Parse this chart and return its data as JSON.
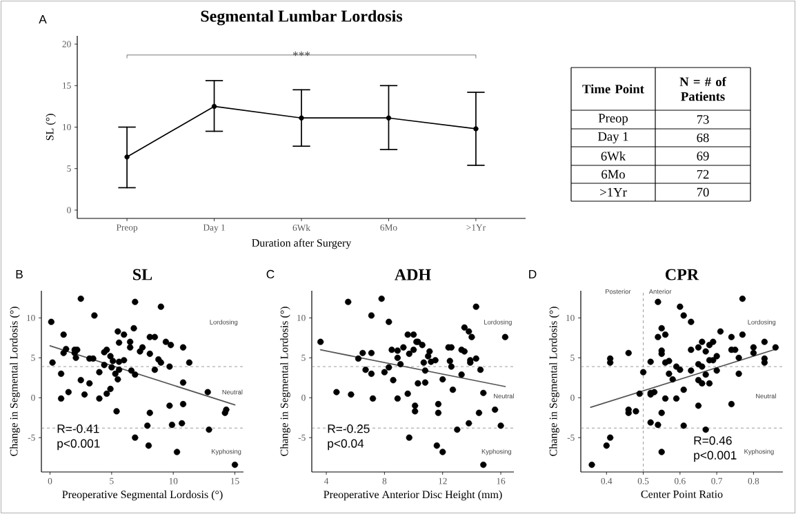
{
  "chart_data": [
    {
      "type": "line",
      "title": "Segmental Lumbar Lordosis",
      "xlabel": "Duration after Surgery",
      "ylabel": "SL (°)",
      "categories": [
        "Preop",
        "Day 1",
        "6Wk",
        "6Mo",
        ">1Yr"
      ],
      "ylim": [
        -1,
        21
      ],
      "yticks": [
        0,
        5,
        10,
        15,
        20
      ],
      "marker": "circle",
      "annotations": [
        "A",
        "***"
      ],
      "series": [
        {
          "color": "#000000",
          "values": [
            6.4,
            12.5,
            11.1,
            11.1,
            9.8
          ],
          "errors": [
            [
              2.7,
              10.0
            ],
            [
              9.5,
              15.6
            ],
            [
              7.7,
              14.5
            ],
            [
              7.3,
              15.0
            ],
            [
              5.4,
              14.2
            ]
          ]
        }
      ]
    },
    {
      "type": "other",
      "categories": [
        "Preop",
        "Day 1",
        "6Wk",
        "6Mo",
        ">1Yr"
      ],
      "values": [
        73,
        68,
        69,
        72,
        70
      ],
      "data_labels": true,
      "annotations": [
        "Time Point",
        "N = # of Patients"
      ]
    },
    {
      "type": "scatter",
      "title": "SL",
      "xlabel": "Preoperative Segmental Lordosis (°)",
      "ylabel": "Change in Segmental Lordosis (°)",
      "xlim": [
        -0.7,
        15.7
      ],
      "xticks": [
        0,
        5,
        10,
        15
      ],
      "ylim": [
        -9.3,
        13.4
      ],
      "yticks": [
        -5,
        0,
        5,
        10
      ],
      "marker": "circle",
      "series": [
        {
          "color": "#000000",
          "x": [
            2.5,
            6.9,
            9.0,
            3.6,
            0.1,
            1.1,
            6.8,
            5.5,
            6.0,
            8.1,
            8.5,
            6.5,
            5.6,
            9.4,
            9.8,
            10.8,
            6.5,
            1.3,
            2.0,
            2.2,
            7.5,
            7.3,
            4.6,
            4.4,
            1.1,
            2.0,
            8.1,
            2.1,
            4.9,
            3.2,
            3.5,
            5.1,
            6.0,
            5.6,
            8.8,
            9.0,
            11.3,
            0.2,
            4.4,
            5.0,
            9.7,
            5.6,
            6.6,
            8.5,
            0.9,
            4.0,
            5.3,
            6.9,
            5.5,
            2.5,
            3.2,
            10.8,
            4.9,
            4.6,
            2.8,
            1.5,
            0.9,
            4.0,
            12.8,
            9.7,
            10.8,
            5.4,
            8.1,
            14.2,
            14.3,
            7.9,
            9.9,
            10.7,
            12.9,
            6.9,
            8.0,
            10.3,
            15.0
          ],
          "values": [
            12.4,
            12.0,
            11.4,
            10.3,
            9.5,
            7.9,
            8.7,
            8.3,
            7.9,
            7.6,
            7.6,
            7.0,
            6.9,
            7.0,
            6.6,
            6.3,
            6.3,
            6.1,
            6.0,
            6.0,
            6.3,
            5.8,
            6.0,
            5.7,
            5.6,
            5.6,
            5.5,
            5.0,
            5.2,
            4.9,
            4.9,
            4.6,
            4.7,
            4.5,
            4.8,
            4.4,
            4.4,
            4.4,
            4.1,
            3.8,
            3.9,
            3.5,
            3.4,
            3.5,
            3.0,
            3.2,
            3.0,
            2.9,
            2.3,
            2.2,
            1.8,
            1.9,
            1.1,
            0.5,
            0.4,
            0.7,
            -0.1,
            -0.1,
            0.7,
            -1.0,
            -0.8,
            -1.7,
            -1.9,
            -1.9,
            -1.5,
            -3.5,
            -3.4,
            -3.2,
            -4.0,
            -5.0,
            -6.0,
            -6.8,
            -8.4
          ]
        },
        {
          "type": "line",
          "marker": "none",
          "color": "#555555",
          "x": [
            0,
            15
          ],
          "values": [
            6.5,
            -0.9
          ]
        }
      ],
      "ref_lines": [
        {
          "axis": "y",
          "value": 3.9,
          "color": "#808080",
          "line_style": "dashed"
        },
        {
          "axis": "y",
          "value": -3.8,
          "color": "#808080",
          "line_style": "dashed"
        }
      ],
      "annotations": [
        "B",
        "R=-0.41",
        "p<0.001",
        "Lordosing",
        "Neutral",
        "Kyphosing"
      ]
    },
    {
      "type": "scatter",
      "title": "ADH",
      "xlabel": "Preoperative Anterior Disc Height (mm)",
      "ylabel": "Change in Segmental Lordosis (°)",
      "xlim": [
        3.0,
        16.9
      ],
      "xticks": [
        4,
        8,
        12,
        16
      ],
      "ylim": [
        -9.3,
        13.4
      ],
      "yticks": [
        -5,
        0,
        5,
        10
      ],
      "marker": "circle",
      "series": [
        {
          "color": "#000000",
          "x": [
            3.6,
            4.7,
            5.5,
            5.7,
            6.2,
            6.5,
            6.7,
            7.1,
            7.1,
            7.1,
            7.2,
            7.8,
            8.3,
            8.3,
            8.0,
            8.5,
            8.6,
            8.9,
            8.9,
            8.9,
            9.1,
            9.3,
            9.6,
            9.7,
            9.6,
            9.7,
            10.0,
            10.0,
            10.2,
            10.3,
            10.6,
            10.1,
            10.1,
            10.3,
            10.7,
            10.8,
            10.8,
            11.0,
            11.1,
            11.2,
            11.5,
            11.6,
            11.7,
            11.7,
            12.0,
            12.0,
            12.4,
            12.6,
            12.5,
            12.6,
            12.7,
            13.0,
            13.3,
            13.5,
            13.3,
            13.5,
            13.8,
            14.0,
            13.9,
            13.9,
            14.3,
            14.3,
            14.6,
            13.8,
            14.5,
            14.8,
            14.8,
            15.6,
            16.0,
            16.3
          ],
          "values": [
            7.0,
            0.7,
            12.0,
            0.4,
            4.9,
            5.6,
            3.5,
            10.3,
            5.6,
            3.0,
            -0.1,
            12.4,
            9.5,
            3.8,
            3.2,
            6.0,
            2.2,
            5.9,
            5.0,
            -0.1,
            4.2,
            6.3,
            7.9,
            5.5,
            0.5,
            -5.0,
            7.9,
            6.0,
            7.0,
            7.0,
            6.6,
            -1.0,
            -1.7,
            1.8,
            4.4,
            3.4,
            1.9,
            5.2,
            5.8,
            4.5,
            4.7,
            -6.0,
            -0.8,
            -1.9,
            -6.8,
            2.3,
            6.3,
            6.3,
            4.6,
            3.9,
            1.0,
            -4.0,
            6.0,
            5.8,
            2.9,
            8.8,
            8.3,
            7.6,
            4.4,
            4.7,
            11.4,
            4.9,
            3.5,
            -3.2,
            -1.9,
            0.6,
            -8.4,
            -1.5,
            -3.5,
            7.6
          ]
        },
        {
          "type": "line",
          "marker": "none",
          "color": "#555555",
          "x": [
            3.6,
            16.3
          ],
          "values": [
            6.0,
            1.4
          ]
        }
      ],
      "ref_lines": [
        {
          "axis": "y",
          "value": 3.9,
          "color": "#808080",
          "line_style": "dashed"
        },
        {
          "axis": "y",
          "value": -3.8,
          "color": "#808080",
          "line_style": "dashed"
        }
      ],
      "annotations": [
        "C",
        "R=-0.25",
        "p<0.04",
        "Lordosing",
        "Neutral",
        "Kyphosing"
      ]
    },
    {
      "type": "scatter",
      "title": "CPR",
      "xlabel": "Center Point Ratio",
      "ylabel": "Change in Segmental Lordosis (°)",
      "xlim": [
        0.33,
        0.88
      ],
      "xticks": [
        0.4,
        0.5,
        0.6,
        0.7,
        0.8
      ],
      "ylim": [
        -9.3,
        13.4
      ],
      "yticks": [
        -5,
        0,
        5,
        10
      ],
      "marker": "circle",
      "series": [
        {
          "color": "#000000",
          "x": [
            0.36,
            0.4,
            0.41,
            0.41,
            0.41,
            0.46,
            0.46,
            0.46,
            0.48,
            0.49,
            0.5,
            0.52,
            0.52,
            0.52,
            0.53,
            0.52,
            0.54,
            0.54,
            0.54,
            0.55,
            0.55,
            0.55,
            0.56,
            0.57,
            0.56,
            0.57,
            0.56,
            0.55,
            0.55,
            0.59,
            0.6,
            0.58,
            0.59,
            0.6,
            0.61,
            0.61,
            0.61,
            0.63,
            0.63,
            0.63,
            0.65,
            0.65,
            0.65,
            0.66,
            0.66,
            0.66,
            0.65,
            0.67,
            0.67,
            0.67,
            0.68,
            0.68,
            0.68,
            0.69,
            0.69,
            0.7,
            0.7,
            0.71,
            0.74,
            0.75,
            0.74,
            0.74,
            0.76,
            0.76,
            0.77,
            0.77,
            0.8,
            0.8,
            0.83,
            0.83,
            0.83,
            0.86
          ],
          "values": [
            -8.4,
            -6.0,
            -5.0,
            4.9,
            4.4,
            5.6,
            -1.5,
            -1.9,
            -1.7,
            0.5,
            3.2,
            4.5,
            0.4,
            0.6,
            0.7,
            -3.1,
            -3.4,
            12.0,
            7.6,
            8.7,
            5.9,
            5.5,
            4.4,
            4.6,
            7.9,
            3.0,
            -0.1,
            -1.9,
            -6.8,
            3.9,
            3.5,
            2.3,
            -0.1,
            11.4,
            10.3,
            1.0,
            -3.5,
            9.5,
            6.0,
            3.4,
            4.2,
            6.3,
            2.2,
            1.8,
            7.0,
            3.9,
            -1.0,
            2.9,
            -4.0,
            5.8,
            6.6,
            1.8,
            4.7,
            4.7,
            7.0,
            5.2,
            3.4,
            8.3,
            6.0,
            6.0,
            7.6,
            -0.8,
            5.0,
            3.0,
            12.4,
            7.9,
            6.3,
            5.6,
            7.0,
            4.9,
            4.4,
            6.3
          ]
        },
        {
          "type": "line",
          "marker": "none",
          "color": "#555555",
          "x": [
            0.357,
            0.855
          ],
          "values": [
            -1.2,
            6.0
          ]
        }
      ],
      "ref_lines": [
        {
          "axis": "y",
          "value": 3.9,
          "color": "#808080",
          "line_style": "dashed"
        },
        {
          "axis": "y",
          "value": -3.8,
          "color": "#808080",
          "line_style": "dashed"
        },
        {
          "axis": "x",
          "value": 0.5,
          "color": "#808080",
          "line_style": "dashed"
        }
      ],
      "annotations": [
        "D",
        "R=0.46",
        "p<0.001",
        "Lordosing",
        "Neutral",
        "Kyphosing",
        "Posterior",
        "Anterior"
      ]
    }
  ]
}
